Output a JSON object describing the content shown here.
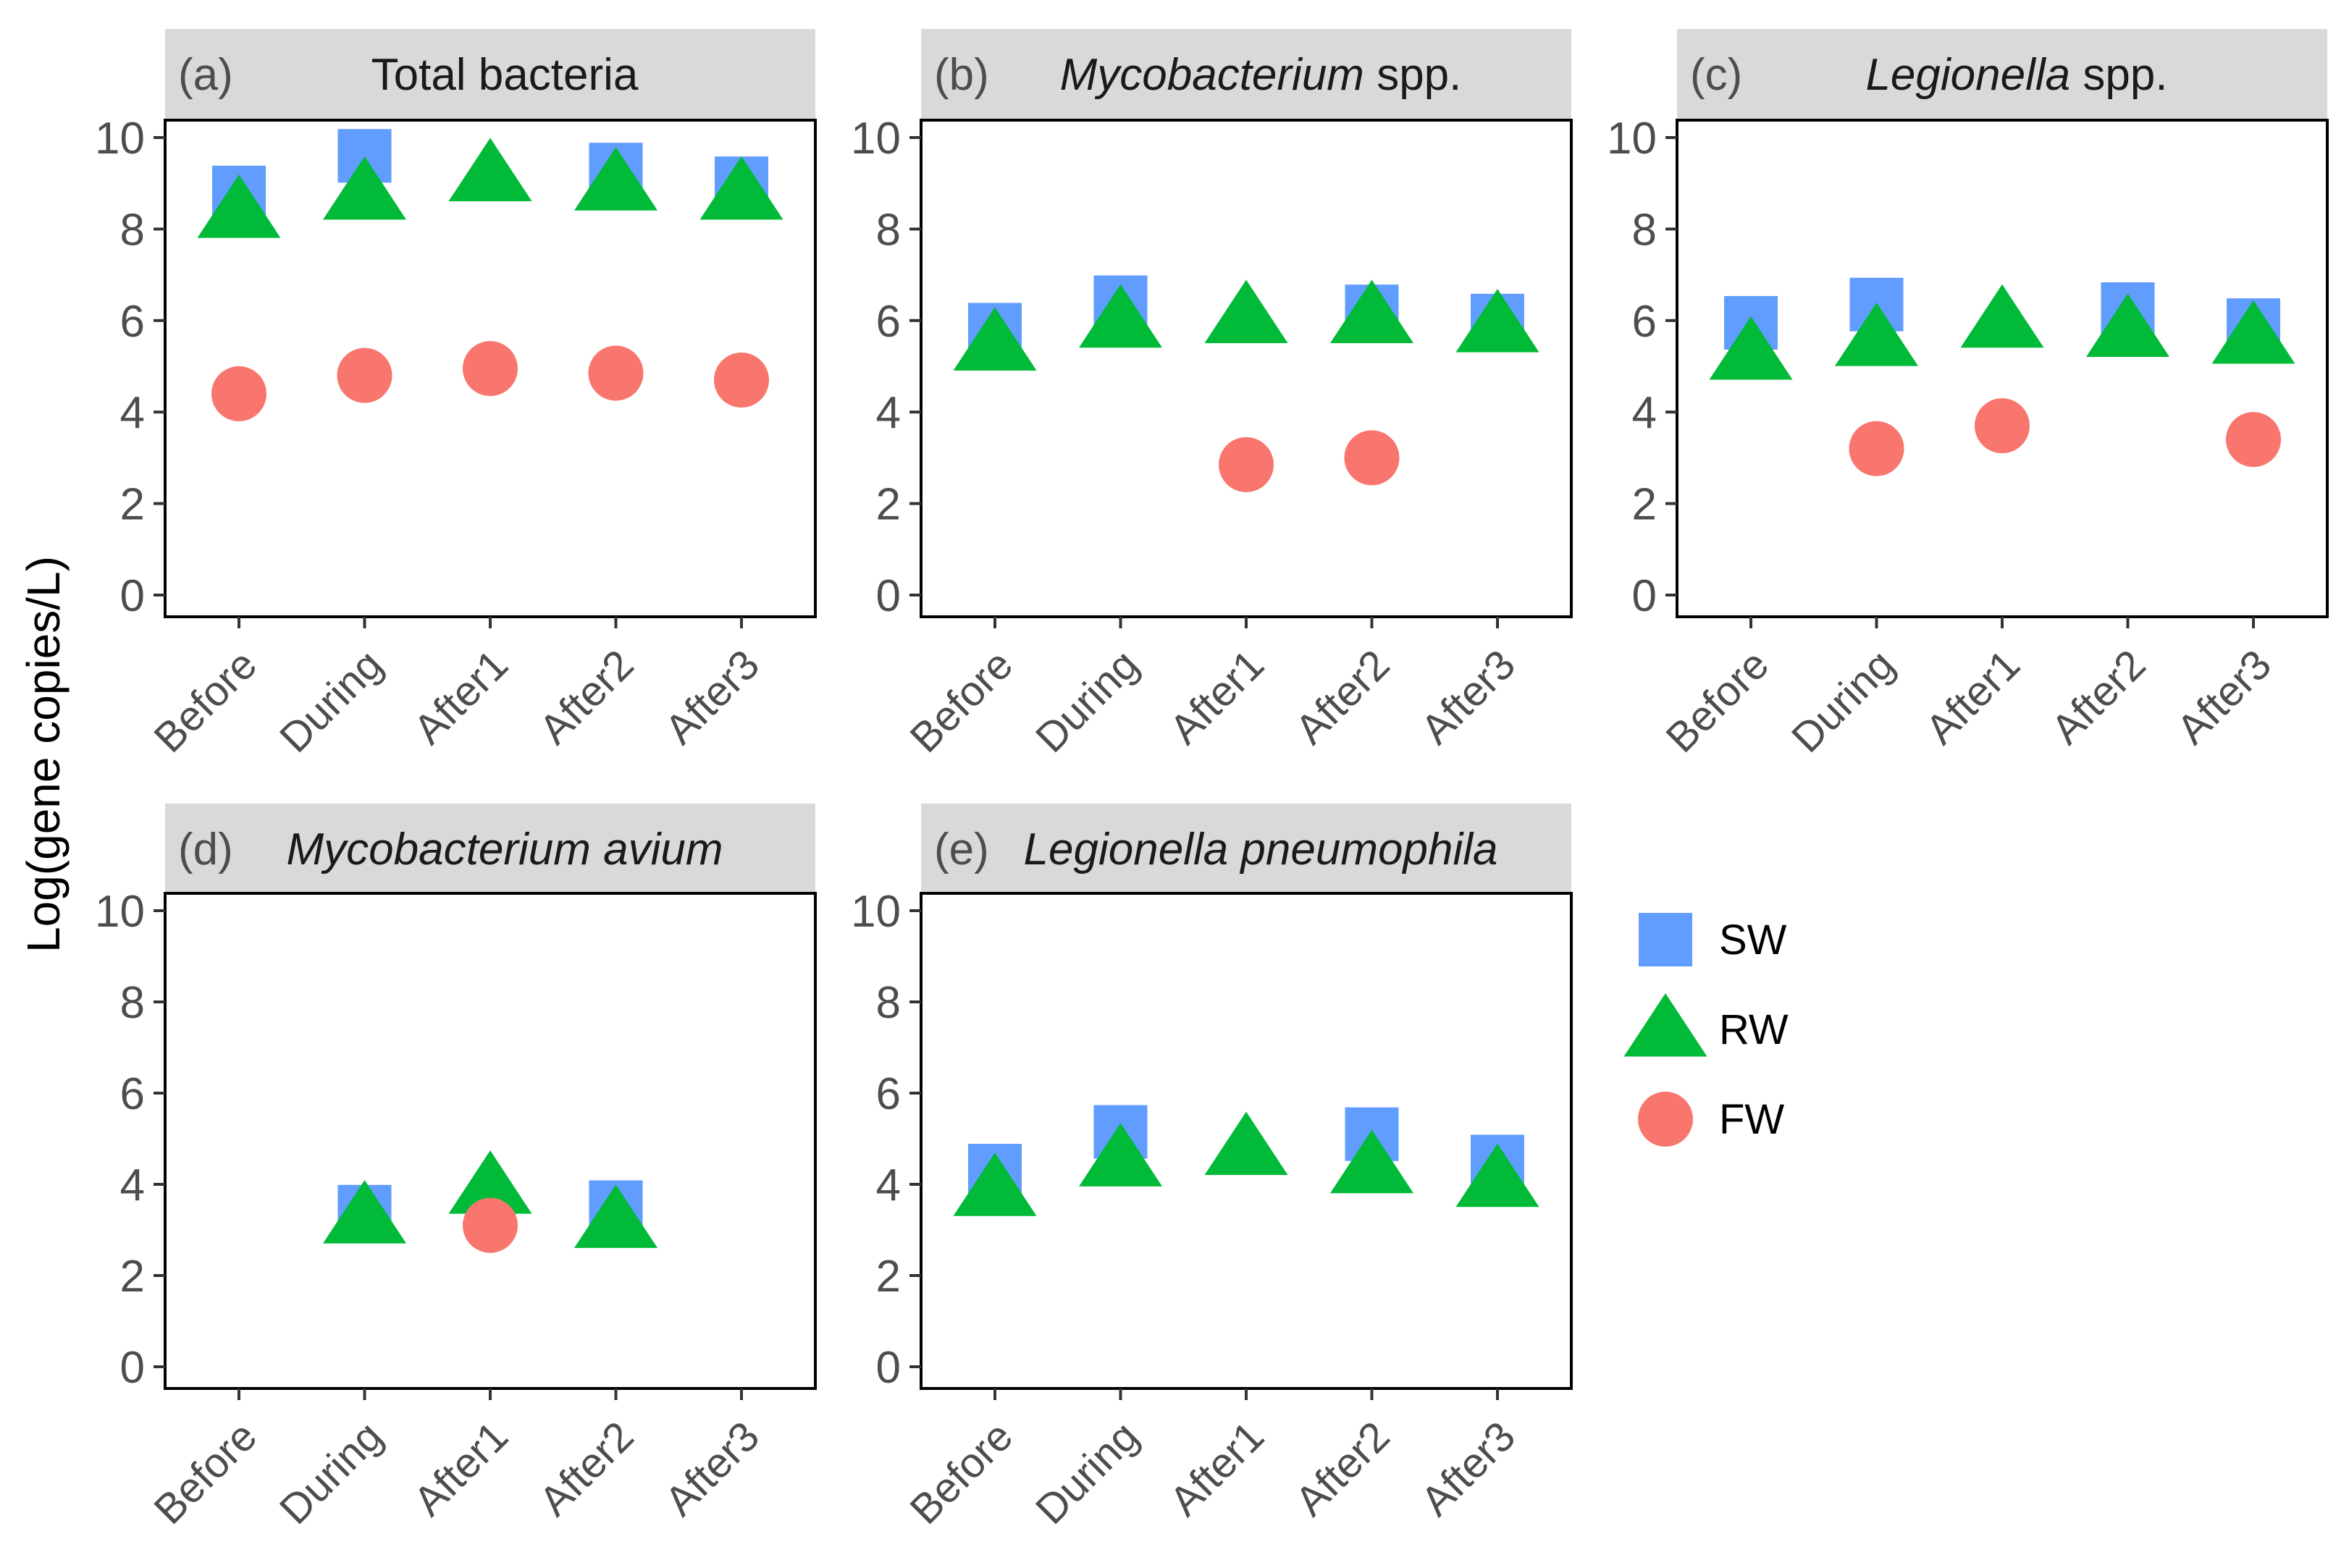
{
  "chart_data": {
    "type": "scatter",
    "ylabel": "Log(gene copies/L)",
    "ylim": [
      0,
      10
    ],
    "yticks": [
      0,
      2,
      4,
      6,
      8,
      10
    ],
    "categories": [
      "Before",
      "During",
      "After1",
      "After2",
      "After3"
    ],
    "series_styles": [
      {
        "name": "SW",
        "marker": "square",
        "color": "#619cff"
      },
      {
        "name": "RW",
        "marker": "triangle",
        "color": "#00ba38"
      },
      {
        "name": "FW",
        "marker": "circle",
        "color": "#f8766d"
      }
    ],
    "legend": {
      "position": "right",
      "entries": [
        "SW",
        "RW",
        "FW"
      ]
    },
    "panels": [
      {
        "letter": "(a)",
        "title_parts": [
          {
            "text": "Total bacteria",
            "italic": false
          }
        ],
        "series": [
          {
            "name": "SW",
            "values": [
              8.8,
              9.6,
              null,
              9.3,
              9.0
            ]
          },
          {
            "name": "RW",
            "values": [
              8.4,
              8.8,
              9.2,
              9.0,
              8.8
            ]
          },
          {
            "name": "FW",
            "values": [
              4.4,
              4.8,
              4.95,
              4.85,
              4.7
            ]
          }
        ]
      },
      {
        "letter": "(b)",
        "title_parts": [
          {
            "text": "Mycobacterium",
            "italic": true
          },
          {
            "text": " spp.",
            "italic": false
          }
        ],
        "series": [
          {
            "name": "SW",
            "values": [
              5.8,
              6.4,
              null,
              6.2,
              6.0
            ]
          },
          {
            "name": "RW",
            "values": [
              5.5,
              6.0,
              6.1,
              6.1,
              5.9
            ]
          },
          {
            "name": "FW",
            "values": [
              null,
              null,
              2.85,
              3.0,
              null
            ]
          }
        ]
      },
      {
        "letter": "(c)",
        "title_parts": [
          {
            "text": "Legionella",
            "italic": true
          },
          {
            "text": " spp.",
            "italic": false
          }
        ],
        "series": [
          {
            "name": "SW",
            "values": [
              5.95,
              6.35,
              null,
              6.25,
              5.9
            ]
          },
          {
            "name": "RW",
            "values": [
              5.3,
              5.6,
              6.0,
              5.8,
              5.65
            ]
          },
          {
            "name": "FW",
            "values": [
              null,
              3.2,
              3.7,
              null,
              3.4
            ]
          }
        ]
      },
      {
        "letter": "(d)",
        "title_parts": [
          {
            "text": "Mycobacterium avium",
            "italic": true
          }
        ],
        "series": [
          {
            "name": "SW",
            "values": [
              null,
              3.4,
              null,
              3.5,
              null
            ]
          },
          {
            "name": "RW",
            "values": [
              null,
              3.3,
              3.95,
              3.2,
              null
            ]
          },
          {
            "name": "FW",
            "values": [
              null,
              null,
              3.1,
              null,
              null
            ]
          }
        ]
      },
      {
        "letter": "(e)",
        "title_parts": [
          {
            "text": "Legionella pneumophila",
            "italic": true
          }
        ],
        "series": [
          {
            "name": "SW",
            "values": [
              4.3,
              5.15,
              null,
              5.1,
              4.5
            ]
          },
          {
            "name": "RW",
            "values": [
              3.9,
              4.55,
              4.8,
              4.4,
              4.1
            ]
          },
          {
            "name": "FW",
            "values": [
              null,
              null,
              null,
              null,
              null
            ]
          }
        ]
      }
    ]
  }
}
